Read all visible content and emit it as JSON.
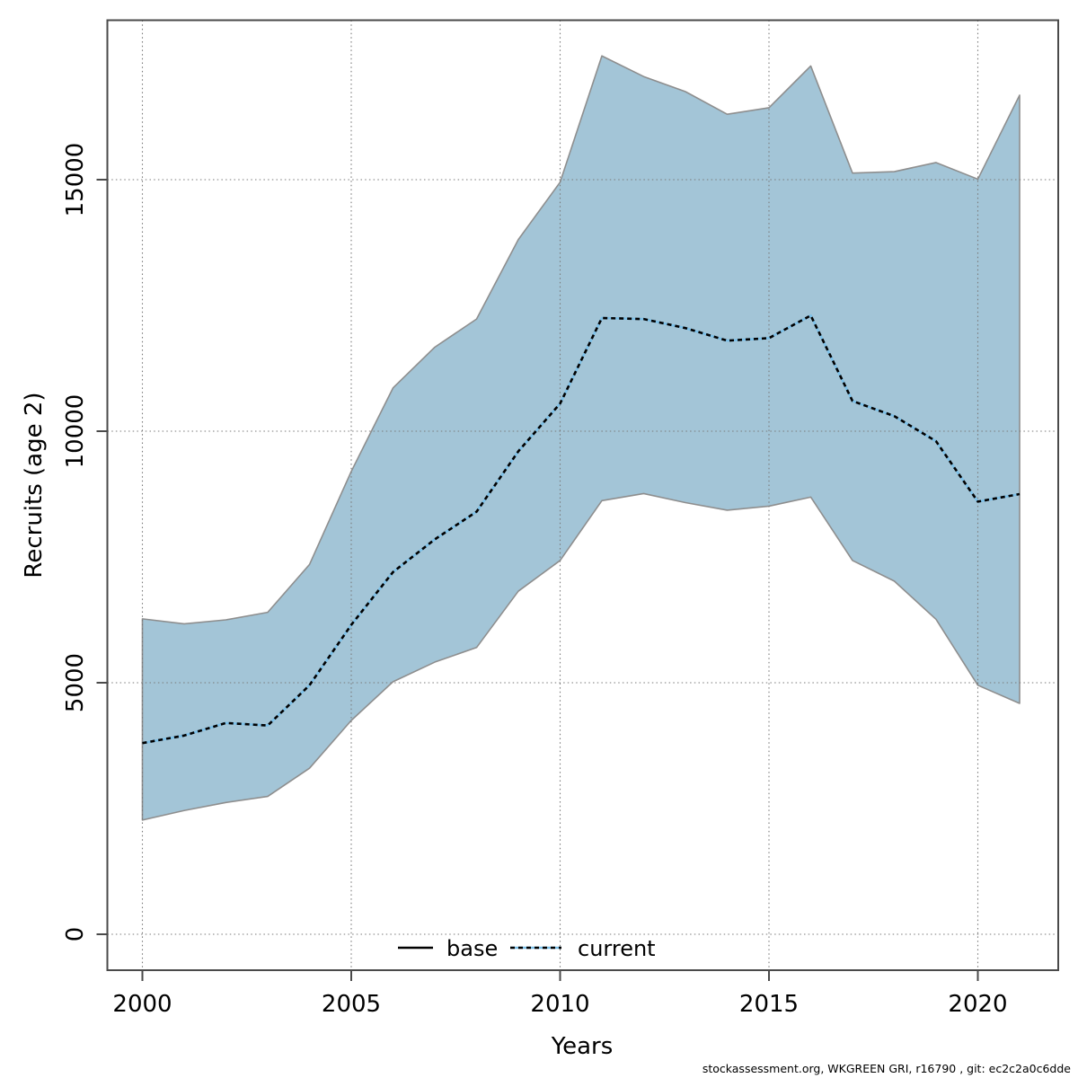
{
  "meta": {
    "footer": "stockassessment.org, WKGREEN GRI, r16790 , git: ec2c2a0c6dde"
  },
  "chart_data": {
    "type": "area",
    "title": "",
    "xlabel": "Years",
    "ylabel": "Recruits (age 2)",
    "x_ticks": [
      2000,
      2005,
      2010,
      2015,
      2020
    ],
    "y_ticks": [
      0,
      5000,
      10000,
      15000
    ],
    "xlim": [
      1999.2,
      2021.9
    ],
    "ylim": [
      -700,
      18180
    ],
    "grid": true,
    "legend_position": "bottom-center-inside",
    "legend": [
      {
        "label": "base",
        "line_style": "solid",
        "color": "#000000"
      },
      {
        "label": "current",
        "line_style": "dashed",
        "color": "#7cc0e8"
      }
    ],
    "x": [
      2000,
      2001,
      2002,
      2003,
      2004,
      2005,
      2006,
      2007,
      2008,
      2009,
      2010,
      2011,
      2012,
      2013,
      2014,
      2015,
      2016,
      2017,
      2018,
      2019,
      2020,
      2021
    ],
    "series": [
      {
        "name": "current_median",
        "values": [
          3800,
          3950,
          4200,
          4150,
          4950,
          6150,
          7200,
          7850,
          8400,
          9600,
          10550,
          12250,
          12230,
          12050,
          11800,
          11850,
          12300,
          10600,
          10300,
          9800,
          8600,
          8750
        ]
      },
      {
        "name": "ci_high",
        "values": [
          6270,
          6170,
          6250,
          6400,
          7350,
          9200,
          10860,
          11670,
          12230,
          13810,
          14950,
          17460,
          17050,
          16750,
          16300,
          16430,
          17260,
          15130,
          15160,
          15340,
          15010,
          16680
        ]
      },
      {
        "name": "ci_low",
        "values": [
          2270,
          2460,
          2620,
          2740,
          3300,
          4250,
          5020,
          5410,
          5700,
          6820,
          7430,
          8620,
          8760,
          8580,
          8430,
          8510,
          8690,
          7430,
          7020,
          6260,
          4950,
          4590
        ]
      }
    ],
    "colors": {
      "band_fill": "#a3c5d7",
      "band_edge": "#8e8e8e",
      "median_line_blue": "#7cc0e8",
      "median_line_dash": "#000000",
      "grid": "#7a7a7a",
      "frame": "#4a4a4a",
      "text": "#000000"
    }
  }
}
